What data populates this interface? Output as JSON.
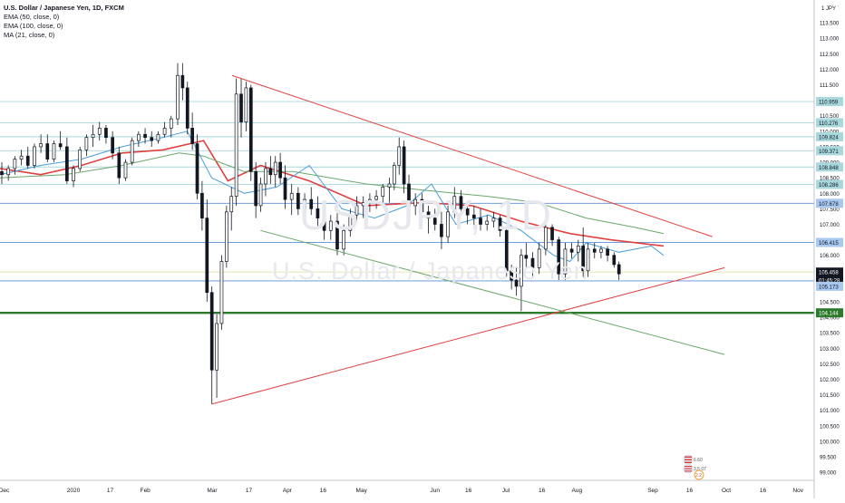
{
  "header": {
    "title": "U.S. Dollar / Japanese Yen, 1D, FXCM",
    "indicators": [
      "EMA (50, close, 0)",
      "EMA (100, close, 0)",
      "MA (21, close, 0)"
    ]
  },
  "watermark": {
    "symbol": "USDJPY, 1D",
    "name": "U.S. Dollar / Japanese Yen"
  },
  "price_axis": {
    "currency": "JPY",
    "ticks": [
      "113.500",
      "113.000",
      "112.500",
      "112.000",
      "111.500",
      "111.000",
      "110.500",
      "110.000",
      "109.500",
      "109.000",
      "108.500",
      "108.000",
      "107.500",
      "107.000",
      "106.500",
      "106.000",
      "105.500",
      "105.000",
      "104.500",
      "104.000",
      "103.500",
      "103.000",
      "102.500",
      "102.000",
      "101.500",
      "101.000",
      "100.500",
      "100.000",
      "99.500",
      "99.000"
    ],
    "labels": [
      {
        "text": "110.959",
        "value": 110.959,
        "color": "#a8d8dc"
      },
      {
        "text": "110.276",
        "value": 110.276,
        "color": "#a8d8dc"
      },
      {
        "text": "109.824",
        "value": 109.824,
        "color": "#a8d8dc"
      },
      {
        "text": "109.371",
        "value": 109.371,
        "color": "#a8d8dc"
      },
      {
        "text": "108.848",
        "value": 108.848,
        "color": "#a8d8dc"
      },
      {
        "text": "108.286",
        "value": 108.286,
        "color": "#a8d8dc"
      },
      {
        "text": "107.678",
        "value": 107.678,
        "color": "#a8c8f0"
      },
      {
        "text": "106.415",
        "value": 106.415,
        "color": "#a8c8f0"
      },
      {
        "text": "105.458",
        "value": 105.458,
        "color": "#131722"
      },
      {
        "text": "01:45:28",
        "value": 105.2,
        "color": "#131722"
      },
      {
        "text": "105.173",
        "value": 105.0,
        "color": "#a8c8f0"
      },
      {
        "text": "104.144",
        "value": 104.144,
        "color": "#2d7a2d"
      }
    ]
  },
  "time_axis": {
    "labels": [
      "Dec",
      "2020",
      "17",
      "Feb",
      "Mar",
      "17",
      "Apr",
      "16",
      "May",
      "Jun",
      "16",
      "Jul",
      "16",
      "Aug",
      "Sep",
      "16",
      "Oct",
      "16",
      "Nov"
    ]
  },
  "badges": [
    "6.60",
    "3.5 07",
    "2.2"
  ],
  "chart_data": {
    "type": "candlestick",
    "title": "U.S. Dollar / Japanese Yen, 1D, FXCM",
    "ylim": [
      98.8,
      114.0
    ],
    "horizontal_levels": [
      {
        "value": 110.959,
        "color": "#a8d8dc"
      },
      {
        "value": 110.276,
        "color": "#a8d8dc"
      },
      {
        "value": 109.824,
        "color": "#a8d8dc"
      },
      {
        "value": 109.371,
        "color": "#a8d8dc"
      },
      {
        "value": 108.848,
        "color": "#a8d8dc"
      },
      {
        "value": 108.286,
        "color": "#a8d8dc"
      },
      {
        "value": 107.678,
        "color": "#5b8fd9"
      },
      {
        "value": 106.415,
        "color": "#5b8fd9"
      },
      {
        "value": 105.458,
        "color": "#dfe3a8"
      },
      {
        "value": 105.173,
        "color": "#5b8fd9"
      },
      {
        "value": 104.144,
        "color": "#2d7a2d"
      }
    ],
    "trendlines": [
      {
        "color": "#e04040",
        "from": [
          0.285,
          111.8
        ],
        "to": [
          0.875,
          106.6
        ]
      },
      {
        "color": "#e04040",
        "from": [
          0.26,
          101.2
        ],
        "to": [
          0.89,
          105.6
        ]
      },
      {
        "color": "#6aa86a",
        "from": [
          0.32,
          106.8
        ],
        "to": [
          0.89,
          102.8
        ]
      }
    ],
    "series": [
      {
        "name": "EMA (50, close, 0)",
        "color": "#e04040",
        "points": [
          [
            0.0,
            108.8
          ],
          [
            0.05,
            108.6
          ],
          [
            0.1,
            108.9
          ],
          [
            0.15,
            109.3
          ],
          [
            0.2,
            109.4
          ],
          [
            0.25,
            109.7
          ],
          [
            0.28,
            108.4
          ],
          [
            0.32,
            108.9
          ],
          [
            0.38,
            108.4
          ],
          [
            0.45,
            107.6
          ],
          [
            0.52,
            107.7
          ],
          [
            0.58,
            107.6
          ],
          [
            0.64,
            107.1
          ],
          [
            0.7,
            106.7
          ],
          [
            0.75,
            106.5
          ],
          [
            0.815,
            106.3
          ]
        ]
      },
      {
        "name": "EMA (100, close, 0)",
        "color": "#6aa86a",
        "points": [
          [
            0.0,
            108.5
          ],
          [
            0.08,
            108.6
          ],
          [
            0.15,
            108.9
          ],
          [
            0.22,
            109.3
          ],
          [
            0.25,
            109.2
          ],
          [
            0.3,
            108.7
          ],
          [
            0.36,
            108.7
          ],
          [
            0.45,
            108.3
          ],
          [
            0.52,
            108.1
          ],
          [
            0.6,
            107.9
          ],
          [
            0.66,
            107.7
          ],
          [
            0.72,
            107.2
          ],
          [
            0.78,
            106.9
          ],
          [
            0.815,
            106.7
          ]
        ]
      },
      {
        "name": "MA (21, close, 0)",
        "color": "#4a9fd8",
        "points": [
          [
            0.0,
            108.6
          ],
          [
            0.05,
            108.9
          ],
          [
            0.1,
            109.1
          ],
          [
            0.15,
            109.5
          ],
          [
            0.2,
            109.8
          ],
          [
            0.23,
            110.0
          ],
          [
            0.26,
            108.5
          ],
          [
            0.3,
            108.0
          ],
          [
            0.34,
            108.2
          ],
          [
            0.38,
            108.9
          ],
          [
            0.42,
            107.5
          ],
          [
            0.46,
            107.2
          ],
          [
            0.5,
            107.6
          ],
          [
            0.53,
            108.3
          ],
          [
            0.56,
            107.0
          ],
          [
            0.6,
            107.3
          ],
          [
            0.64,
            106.8
          ],
          [
            0.68,
            106.0
          ],
          [
            0.7,
            105.8
          ],
          [
            0.72,
            106.4
          ],
          [
            0.76,
            106.1
          ],
          [
            0.8,
            106.3
          ],
          [
            0.815,
            106.0
          ]
        ]
      }
    ],
    "candles": [
      [
        0.0,
        108.7,
        109.0,
        108.3,
        108.6
      ],
      [
        0.008,
        108.6,
        108.9,
        108.4,
        108.8
      ],
      [
        0.016,
        108.8,
        109.2,
        108.6,
        109.1
      ],
      [
        0.024,
        109.1,
        109.4,
        108.9,
        109.2
      ],
      [
        0.032,
        109.2,
        109.5,
        108.8,
        108.9
      ],
      [
        0.04,
        108.9,
        109.6,
        108.8,
        109.5
      ],
      [
        0.048,
        109.5,
        109.9,
        109.3,
        109.6
      ],
      [
        0.056,
        109.6,
        109.9,
        109.0,
        109.1
      ],
      [
        0.064,
        109.1,
        109.7,
        109.0,
        109.6
      ],
      [
        0.072,
        109.6,
        110.0,
        109.4,
        109.5
      ],
      [
        0.08,
        109.5,
        109.8,
        108.3,
        108.4
      ],
      [
        0.088,
        108.4,
        108.9,
        108.2,
        108.8
      ],
      [
        0.096,
        108.8,
        109.5,
        108.7,
        109.4
      ],
      [
        0.104,
        109.4,
        109.9,
        109.2,
        109.8
      ],
      [
        0.112,
        109.8,
        110.2,
        109.5,
        109.9
      ],
      [
        0.12,
        109.9,
        110.3,
        109.7,
        110.1
      ],
      [
        0.128,
        110.1,
        110.2,
        109.6,
        109.8
      ],
      [
        0.136,
        109.8,
        110.0,
        109.1,
        109.3
      ],
      [
        0.144,
        109.3,
        109.5,
        108.3,
        108.5
      ],
      [
        0.152,
        108.5,
        109.1,
        108.4,
        109.0
      ],
      [
        0.16,
        109.0,
        109.8,
        108.9,
        109.7
      ],
      [
        0.168,
        109.7,
        110.0,
        109.5,
        109.9
      ],
      [
        0.176,
        109.9,
        110.1,
        109.6,
        109.8
      ],
      [
        0.184,
        109.8,
        110.0,
        109.5,
        109.7
      ],
      [
        0.192,
        109.7,
        110.0,
        109.6,
        109.9
      ],
      [
        0.2,
        109.9,
        110.3,
        109.8,
        110.1
      ],
      [
        0.208,
        110.1,
        110.5,
        109.8,
        110.4
      ],
      [
        0.216,
        110.4,
        112.2,
        110.2,
        111.8
      ],
      [
        0.222,
        111.8,
        112.2,
        111.0,
        111.4
      ],
      [
        0.228,
        111.4,
        111.6,
        109.9,
        110.1
      ],
      [
        0.234,
        110.1,
        110.6,
        109.4,
        109.6
      ],
      [
        0.24,
        109.6,
        109.9,
        107.8,
        108.0
      ],
      [
        0.246,
        108.0,
        108.4,
        106.8,
        107.2
      ],
      [
        0.252,
        107.2,
        107.8,
        104.5,
        104.8
      ],
      [
        0.258,
        104.8,
        105.0,
        101.2,
        102.3
      ],
      [
        0.264,
        102.3,
        104.1,
        101.4,
        103.8
      ],
      [
        0.27,
        103.8,
        106.0,
        103.6,
        105.8
      ],
      [
        0.276,
        105.8,
        107.6,
        105.6,
        107.4
      ],
      [
        0.282,
        107.4,
        108.2,
        106.8,
        107.9
      ],
      [
        0.288,
        107.9,
        111.7,
        107.6,
        111.2
      ],
      [
        0.294,
        111.2,
        111.7,
        109.8,
        110.3
      ],
      [
        0.3,
        110.3,
        111.6,
        110.0,
        111.4
      ],
      [
        0.306,
        111.4,
        111.5,
        108.4,
        108.7
      ],
      [
        0.312,
        108.7,
        109.0,
        107.2,
        107.6
      ],
      [
        0.318,
        107.6,
        108.5,
        107.4,
        108.3
      ],
      [
        0.324,
        108.3,
        109.0,
        107.9,
        108.8
      ],
      [
        0.33,
        108.8,
        109.2,
        108.3,
        108.6
      ],
      [
        0.336,
        108.6,
        109.2,
        108.2,
        109.0
      ],
      [
        0.342,
        109.0,
        109.3,
        108.3,
        108.5
      ],
      [
        0.348,
        108.5,
        108.9,
        107.5,
        107.8
      ],
      [
        0.356,
        107.8,
        108.3,
        107.3,
        108.0
      ],
      [
        0.364,
        108.0,
        108.2,
        107.3,
        107.5
      ],
      [
        0.372,
        107.5,
        108.0,
        107.1,
        107.8
      ],
      [
        0.38,
        107.8,
        108.2,
        107.3,
        107.5
      ],
      [
        0.388,
        107.5,
        107.9,
        106.9,
        107.2
      ],
      [
        0.396,
        107.2,
        107.6,
        106.5,
        106.8
      ],
      [
        0.404,
        106.8,
        107.3,
        106.5,
        107.1
      ],
      [
        0.412,
        107.1,
        107.6,
        106.0,
        106.2
      ],
      [
        0.42,
        106.2,
        107.0,
        106.0,
        106.8
      ],
      [
        0.428,
        106.8,
        107.5,
        106.6,
        107.3
      ],
      [
        0.436,
        107.3,
        107.9,
        107.1,
        107.6
      ],
      [
        0.444,
        107.6,
        107.9,
        107.2,
        107.7
      ],
      [
        0.452,
        107.7,
        108.0,
        107.4,
        107.8
      ],
      [
        0.46,
        107.8,
        108.1,
        107.5,
        107.9
      ],
      [
        0.468,
        107.9,
        108.3,
        107.6,
        108.2
      ],
      [
        0.476,
        108.2,
        108.5,
        107.7,
        108.3
      ],
      [
        0.482,
        108.3,
        109.0,
        108.1,
        108.9
      ],
      [
        0.488,
        108.9,
        109.8,
        108.6,
        109.5
      ],
      [
        0.494,
        109.5,
        109.7,
        108.0,
        108.3
      ],
      [
        0.5,
        108.3,
        108.6,
        107.4,
        107.6
      ],
      [
        0.508,
        107.6,
        108.0,
        107.3,
        107.8
      ],
      [
        0.516,
        107.8,
        108.0,
        107.3,
        107.4
      ],
      [
        0.524,
        107.4,
        107.6,
        106.7,
        107.2
      ],
      [
        0.532,
        107.2,
        107.5,
        106.8,
        107.0
      ],
      [
        0.54,
        107.0,
        107.4,
        106.2,
        106.6
      ],
      [
        0.548,
        106.6,
        107.6,
        106.4,
        107.4
      ],
      [
        0.556,
        107.4,
        108.2,
        107.2,
        107.9
      ],
      [
        0.564,
        107.9,
        108.1,
        107.3,
        107.5
      ],
      [
        0.572,
        107.5,
        107.7,
        107.0,
        107.3
      ],
      [
        0.58,
        107.3,
        107.6,
        106.9,
        107.2
      ],
      [
        0.588,
        107.2,
        107.5,
        106.8,
        107.0
      ],
      [
        0.596,
        107.0,
        107.3,
        106.8,
        107.1
      ],
      [
        0.604,
        107.1,
        107.4,
        106.9,
        107.2
      ],
      [
        0.612,
        107.2,
        107.3,
        106.6,
        106.8
      ],
      [
        0.62,
        106.8,
        106.9,
        105.3,
        105.5
      ],
      [
        0.626,
        105.5,
        105.7,
        104.9,
        105.2
      ],
      [
        0.632,
        105.2,
        105.6,
        104.7,
        105.0
      ],
      [
        0.638,
        105.0,
        106.2,
        104.2,
        106.0
      ],
      [
        0.644,
        106.0,
        106.4,
        105.6,
        105.9
      ],
      [
        0.652,
        105.9,
        106.1,
        105.3,
        105.6
      ],
      [
        0.66,
        105.6,
        106.4,
        105.4,
        106.2
      ],
      [
        0.668,
        106.2,
        107.0,
        106.0,
        106.9
      ],
      [
        0.676,
        106.9,
        107.0,
        106.3,
        106.5
      ],
      [
        0.684,
        106.5,
        106.6,
        105.2,
        105.4
      ],
      [
        0.692,
        105.4,
        106.4,
        105.2,
        106.2
      ],
      [
        0.7,
        106.2,
        106.4,
        105.9,
        106.1
      ],
      [
        0.708,
        106.1,
        106.5,
        105.8,
        106.3
      ],
      [
        0.714,
        106.3,
        106.9,
        105.3,
        105.5
      ],
      [
        0.72,
        105.5,
        106.4,
        105.3,
        106.2
      ],
      [
        0.728,
        106.2,
        106.4,
        105.9,
        106.1
      ],
      [
        0.736,
        106.1,
        106.3,
        105.9,
        106.2
      ],
      [
        0.744,
        106.2,
        106.3,
        105.8,
        106.0
      ],
      [
        0.752,
        106.0,
        106.1,
        105.6,
        105.7
      ],
      [
        0.758,
        105.7,
        105.8,
        105.2,
        105.4
      ]
    ]
  }
}
